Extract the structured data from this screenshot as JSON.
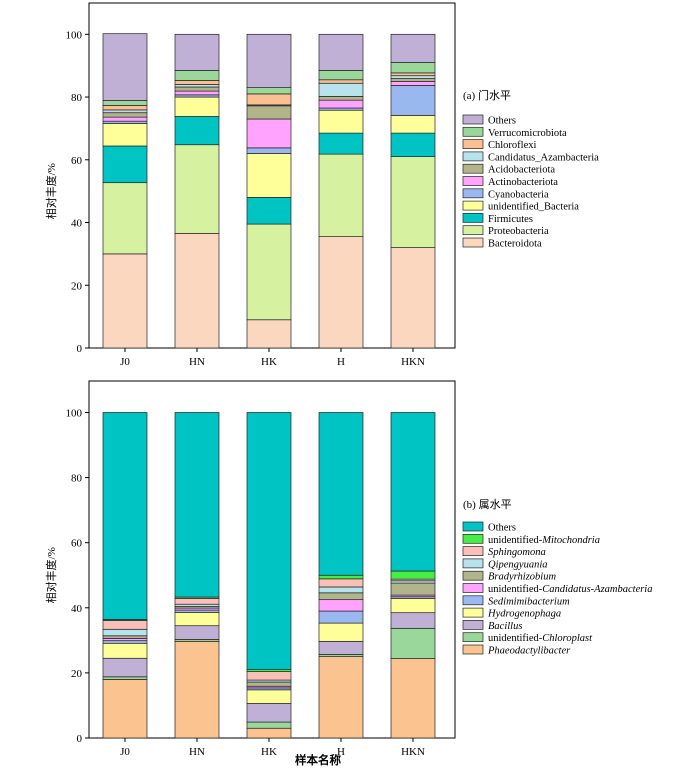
{
  "xlabel": "样本名称",
  "chart_data": [
    {
      "type": "bar",
      "stacked": true,
      "title": "(a) 门水平",
      "ylabel": "相对丰度/%",
      "xlabel": "",
      "ylim": [
        0,
        100
      ],
      "yticks": [
        0,
        20,
        40,
        60,
        80,
        100
      ],
      "categories": [
        "J0",
        "HN",
        "HK",
        "H",
        "HKN"
      ],
      "legend_position": "right",
      "series": [
        {
          "name": "Bacteroidota",
          "italic": false,
          "color": "#fbd7bf",
          "values": [
            30,
            36.5,
            9,
            35.5,
            32
          ]
        },
        {
          "name": "Proteobacteria",
          "italic": false,
          "color": "#d6f2a0",
          "values": [
            22.7,
            28.3,
            30.5,
            26.3,
            29
          ]
        },
        {
          "name": "Firmicutes",
          "italic": false,
          "color": "#00c3c3",
          "values": [
            11.7,
            9,
            8.5,
            6.7,
            7.5
          ]
        },
        {
          "name": "unidentified_Bacteria",
          "italic": false,
          "color": "#ffff99",
          "values": [
            7.2,
            6.2,
            14,
            7.3,
            5.6
          ]
        },
        {
          "name": "Cyanobacteria",
          "italic": false,
          "color": "#9ab8f0",
          "values": [
            0.7,
            0.7,
            1.8,
            0.7,
            9.6
          ]
        },
        {
          "name": "Actinobacteriota",
          "italic": false,
          "color": "#ffa3ff",
          "values": [
            1.3,
            1.2,
            9.2,
            2.5,
            1.3
          ]
        },
        {
          "name": "Acidobacteriota",
          "italic": false,
          "color": "#b2b48a",
          "values": [
            1.4,
            1.3,
            4.2,
            1.2,
            0.9
          ]
        },
        {
          "name": "Candidatus_Azambacteria",
          "italic": false,
          "color": "#b7e3ec",
          "values": [
            0.9,
            0.8,
            0.3,
            4.2,
            0.9
          ]
        },
        {
          "name": "Chloroflexi",
          "italic": false,
          "color": "#fbbf91",
          "values": [
            1.4,
            1.3,
            3.5,
            1.1,
            0.9
          ]
        },
        {
          "name": "Verrucomicrobiota",
          "italic": false,
          "color": "#9ad79a",
          "values": [
            1.6,
            3.2,
            2,
            3,
            3.3
          ]
        },
        {
          "name": "Others",
          "italic": false,
          "color": "#c0b0d6",
          "values": [
            21.3,
            11.5,
            17,
            11.5,
            9
          ]
        }
      ]
    },
    {
      "type": "bar",
      "stacked": true,
      "title": "(b) 属水平",
      "ylabel": "相对丰度/%",
      "xlabel": "",
      "ylim": [
        0,
        100
      ],
      "yticks": [
        0,
        20,
        40,
        60,
        80,
        100
      ],
      "categories": [
        "J0",
        "HN",
        "HK",
        "H",
        "HKN"
      ],
      "legend_position": "right",
      "series": [
        {
          "name": "Phaeodactylibacter",
          "italic": true,
          "color": "#fbc38f",
          "values": [
            18,
            29.7,
            3,
            25,
            24.4
          ]
        },
        {
          "name": "unidentified-Chloroplast",
          "italic": false,
          "prefix": "unidentified-",
          "emph": "Chloroplast",
          "color": "#9ad79a",
          "values": [
            0.8,
            0.6,
            1.9,
            0.7,
            9.3
          ]
        },
        {
          "name": "Bacillus",
          "italic": true,
          "color": "#c0b0d6",
          "values": [
            5.7,
            4.2,
            5.7,
            4,
            4.8
          ]
        },
        {
          "name": "Hydrogenophaga",
          "italic": true,
          "color": "#ffff99",
          "values": [
            4.6,
            4.1,
            4.2,
            5.6,
            4.4
          ]
        },
        {
          "name": "Sedimimibacterium",
          "italic": true,
          "color": "#9ab8f0",
          "values": [
            0.8,
            0.7,
            0.6,
            3.7,
            0.5
          ]
        },
        {
          "name": "unidentified-Candidatus-Azambacteria",
          "italic": false,
          "prefix": "unidentified-",
          "emph": "Candidatus-Azambacteria",
          "color": "#ffa3ff",
          "values": [
            0.7,
            0.6,
            0.5,
            3.5,
            0.5
          ]
        },
        {
          "name": "Bradyrhizobium",
          "italic": true,
          "color": "#b2b48a",
          "values": [
            0.8,
            0.5,
            1.3,
            2.1,
            3.7
          ]
        },
        {
          "name": "Qipengyuania",
          "italic": true,
          "color": "#b7e3ec",
          "values": [
            2,
            0.7,
            0.6,
            1.8,
            0.7
          ]
        },
        {
          "name": "Sphingomona",
          "italic": true,
          "color": "#fbbfb8",
          "values": [
            2.7,
            1.8,
            2.6,
            2.5,
            0.5
          ]
        },
        {
          "name": "unidentified-Mitochondria",
          "italic": false,
          "prefix": "unidentified-",
          "emph": "Mitochondria",
          "color": "#44ee44",
          "values": [
            0.3,
            0.4,
            0.6,
            1.1,
            2.5
          ]
        },
        {
          "name": "Others",
          "italic": false,
          "color": "#00c3c3",
          "values": [
            63.6,
            56.7,
            79,
            50,
            48.7
          ]
        }
      ]
    }
  ]
}
